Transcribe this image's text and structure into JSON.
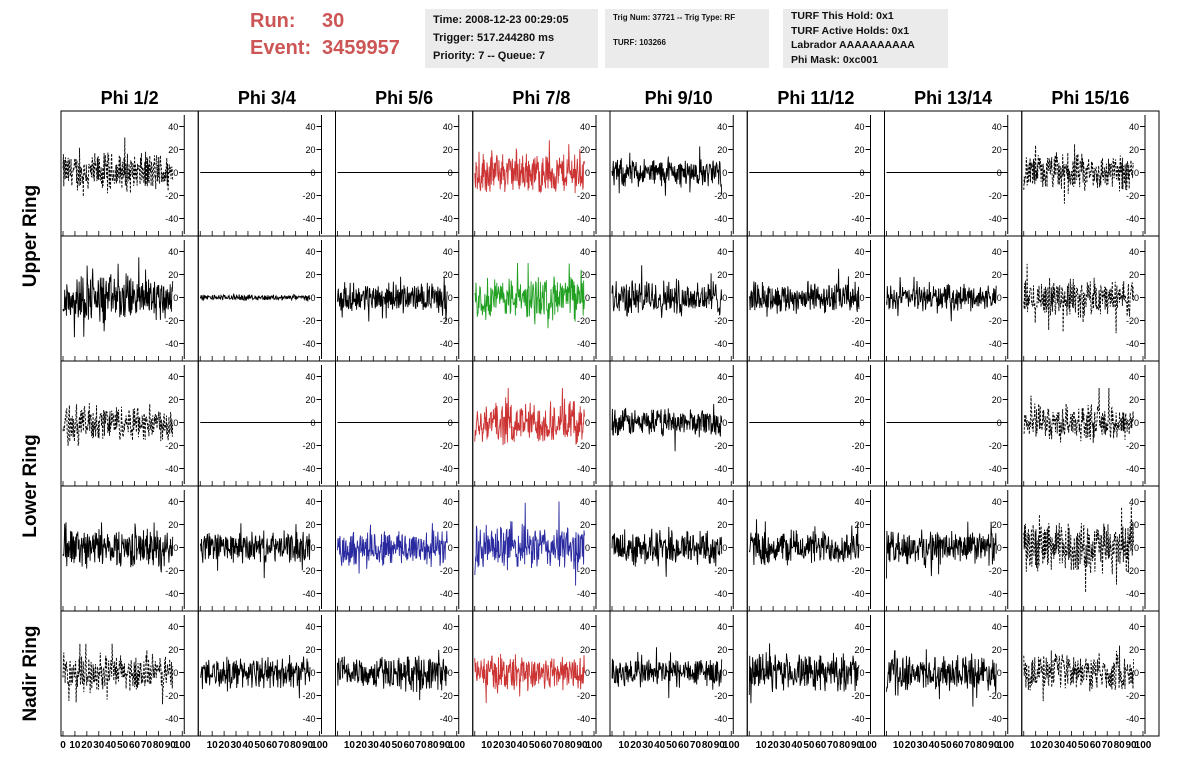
{
  "header": {
    "run_label": "Run:",
    "run_value": "30",
    "event_label": "Event:",
    "event_value": "3459957",
    "time": "Time: 2008-12-23 00:29:05",
    "trigger": "Trigger: 517.244280 ms",
    "priority": "Priority: 7 -- Queue: 7",
    "trig_num": "Trig Num: 37721 -- Trig Type: RF",
    "turf": "TURF: 103266",
    "turf_this_hold": "TURF This Hold: 0x1",
    "turf_active_holds": "TURF Active Holds: 0x1",
    "labrador": "Labrador AAAAAAAAAA",
    "phi_mask": "Phi Mask: 0xc001"
  },
  "chart_data": {
    "type": "line",
    "columns": [
      "Phi 1/2",
      "Phi 3/4",
      "Phi 5/6",
      "Phi 7/8",
      "Phi 9/10",
      "Phi 11/12",
      "Phi 13/14",
      "Phi 15/16"
    ],
    "ring_labels": [
      {
        "label": "Upper Ring",
        "rows": [
          0,
          1
        ]
      },
      {
        "label": "Lower Ring",
        "rows": [
          2,
          3
        ]
      },
      {
        "label": "Nadir Ring",
        "rows": [
          4
        ]
      }
    ],
    "xlim": [
      0,
      100
    ],
    "ylim": [
      -50,
      50
    ],
    "yticks": [
      -40,
      -20,
      0,
      20,
      40
    ],
    "xticks": [
      0,
      10,
      20,
      30,
      40,
      50,
      60,
      70,
      80,
      90,
      100
    ],
    "xtick_labels": [
      "0",
      "10",
      "20",
      "30",
      "40",
      "50",
      "60",
      "70",
      "80",
      "90",
      "100"
    ],
    "colors": {
      "black": "#000000",
      "red": "#cc3333",
      "green": "#22a022",
      "blue": "#2a2aa0"
    },
    "panels": [
      [
        {
          "color": "black",
          "style": "dashed",
          "amp": 14,
          "max": 35
        },
        {
          "color": "black",
          "style": "flat",
          "amp": 0,
          "max": 0
        },
        {
          "color": "black",
          "style": "flat",
          "amp": 0,
          "max": 0
        },
        {
          "color": "red",
          "style": "solid",
          "amp": 15,
          "max": 28
        },
        {
          "color": "black",
          "style": "solid",
          "amp": 10,
          "max": 25
        },
        {
          "color": "black",
          "style": "flat",
          "amp": 0,
          "max": 0
        },
        {
          "color": "black",
          "style": "flat",
          "amp": 0,
          "max": 0
        },
        {
          "color": "black",
          "style": "dashed",
          "amp": 13,
          "max": 30
        }
      ],
      [
        {
          "color": "black",
          "style": "solid",
          "amp": 17,
          "max": 35
        },
        {
          "color": "black",
          "style": "solid",
          "amp": 2,
          "max": 5
        },
        {
          "color": "black",
          "style": "solid",
          "amp": 10,
          "max": 22
        },
        {
          "color": "green",
          "style": "solid",
          "amp": 15,
          "max": 30
        },
        {
          "color": "black",
          "style": "solid",
          "amp": 13,
          "max": 30
        },
        {
          "color": "black",
          "style": "solid",
          "amp": 11,
          "max": 25
        },
        {
          "color": "black",
          "style": "solid",
          "amp": 9,
          "max": 20
        },
        {
          "color": "black",
          "style": "dashed",
          "amp": 13,
          "max": 45
        }
      ],
      [
        {
          "color": "black",
          "style": "dashed",
          "amp": 13,
          "max": 30
        },
        {
          "color": "black",
          "style": "flat",
          "amp": 0,
          "max": 0
        },
        {
          "color": "black",
          "style": "flat",
          "amp": 0,
          "max": 0
        },
        {
          "color": "red",
          "style": "solid",
          "amp": 15,
          "max": 30
        },
        {
          "color": "black",
          "style": "solid",
          "amp": 10,
          "max": 28
        },
        {
          "color": "black",
          "style": "flat",
          "amp": 0,
          "max": 0
        },
        {
          "color": "black",
          "style": "flat",
          "amp": 0,
          "max": 0
        },
        {
          "color": "black",
          "style": "dashed",
          "amp": 13,
          "max": 30
        }
      ],
      [
        {
          "color": "black",
          "style": "solid",
          "amp": 14,
          "max": 30
        },
        {
          "color": "black",
          "style": "solid",
          "amp": 11,
          "max": 25
        },
        {
          "color": "blue",
          "style": "solid",
          "amp": 13,
          "max": 28
        },
        {
          "color": "blue",
          "style": "solid",
          "amp": 16,
          "max": 40
        },
        {
          "color": "black",
          "style": "solid",
          "amp": 13,
          "max": 30
        },
        {
          "color": "black",
          "style": "solid",
          "amp": 12,
          "max": 28
        },
        {
          "color": "black",
          "style": "solid",
          "amp": 12,
          "max": 28
        },
        {
          "color": "black",
          "style": "dashed",
          "amp": 18,
          "max": 40
        }
      ],
      [
        {
          "color": "black",
          "style": "dashed",
          "amp": 13,
          "max": 25
        },
        {
          "color": "black",
          "style": "solid",
          "amp": 11,
          "max": 25
        },
        {
          "color": "black",
          "style": "solid",
          "amp": 12,
          "max": 25
        },
        {
          "color": "red",
          "style": "solid",
          "amp": 13,
          "max": 25
        },
        {
          "color": "black",
          "style": "solid",
          "amp": 11,
          "max": 22
        },
        {
          "color": "black",
          "style": "solid",
          "amp": 13,
          "max": 28
        },
        {
          "color": "black",
          "style": "solid",
          "amp": 12,
          "max": 25
        },
        {
          "color": "black",
          "style": "dashed",
          "amp": 13,
          "max": 25
        }
      ]
    ]
  }
}
